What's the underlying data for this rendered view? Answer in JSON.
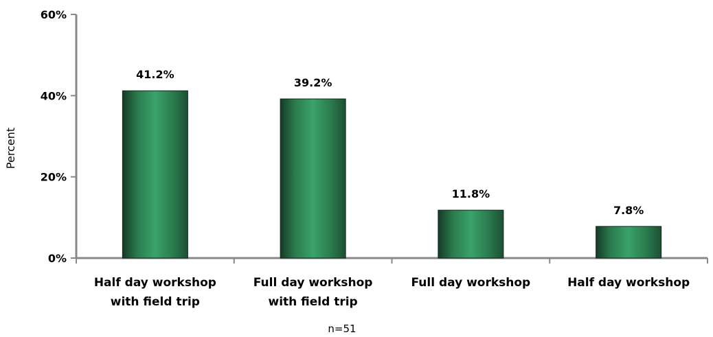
{
  "chart_data": {
    "type": "bar",
    "categories": [
      [
        "Half day workshop",
        "with field trip"
      ],
      [
        "Full day workshop",
        "with field trip"
      ],
      [
        "Full day workshop"
      ],
      [
        "Half day workshop"
      ]
    ],
    "values": [
      41.2,
      39.2,
      11.8,
      7.8
    ],
    "data_labels": [
      "41.2%",
      "39.2%",
      "11.8%",
      "7.8%"
    ],
    "title": "",
    "xlabel": "",
    "ylabel": "Percent",
    "ylim": [
      0,
      60
    ],
    "yticks": [
      0,
      20,
      40,
      60
    ],
    "ytick_labels": [
      "0%",
      "20%",
      "40%",
      "60%"
    ],
    "note": "n=51",
    "grid": false,
    "legend": "none",
    "colors": {
      "bar_edge": "#163a26",
      "bar_center": "#3aa26a",
      "bar_mid": "#2a7a4d",
      "bar_dark": "#1c4f33",
      "axis": "#888888"
    }
  }
}
